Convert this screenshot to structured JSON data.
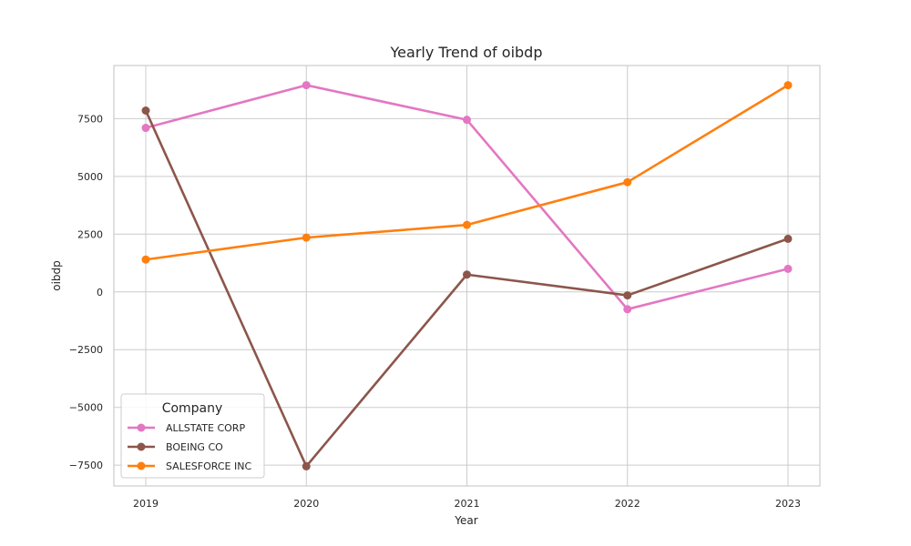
{
  "chart_data": {
    "type": "line",
    "title": "Yearly Trend of oibdp",
    "xlabel": "Year",
    "ylabel": "oibdp",
    "x": [
      2019,
      2020,
      2021,
      2022,
      2023
    ],
    "ylim": [
      -8400,
      9800
    ],
    "yticks": [
      -7500,
      -5000,
      -2500,
      0,
      2500,
      5000,
      7500
    ],
    "grid": true,
    "legend": {
      "title": "Company",
      "placement": "lower-left"
    },
    "series": [
      {
        "name": "ALLSTATE CORP",
        "color": "#e377c2",
        "values": [
          7100,
          8950,
          7450,
          -750,
          1000
        ]
      },
      {
        "name": "BOEING CO",
        "color": "#8c564b",
        "values": [
          7850,
          -7550,
          750,
          -150,
          2300
        ]
      },
      {
        "name": "SALESFORCE INC",
        "color": "#ff7f0e",
        "values": [
          1400,
          2350,
          2900,
          4750,
          8950
        ]
      }
    ]
  }
}
